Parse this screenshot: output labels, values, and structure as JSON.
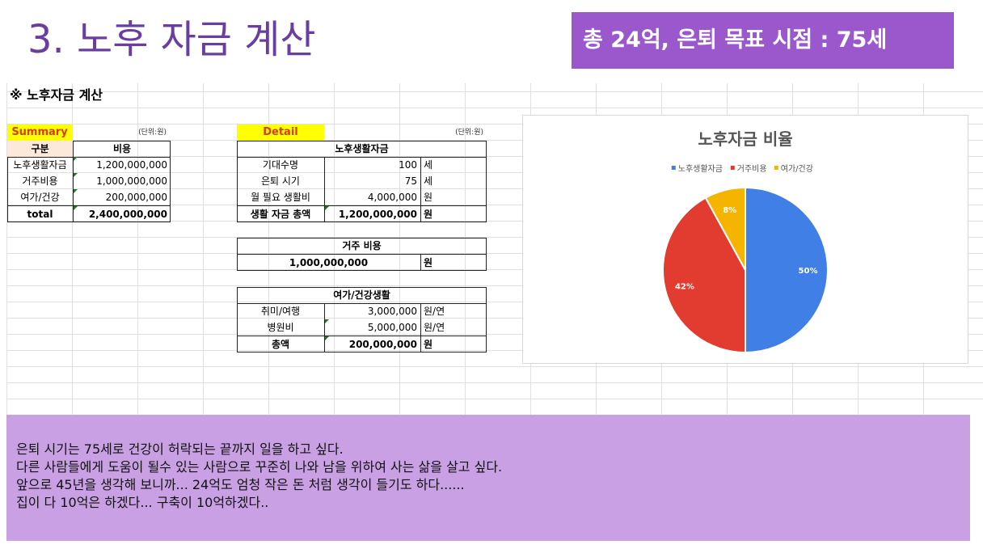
{
  "slide": {
    "title": "3. 노후 자금 계산",
    "banner": "총 24억, 은퇴 목표 시점  : 75세"
  },
  "sheet": {
    "heading": "※ 노후자금 계산",
    "summary": {
      "label": "Summary",
      "unit": "(단위:원)",
      "col_headers": [
        "구분",
        "비용"
      ],
      "rows": [
        {
          "name": "노후생활자금",
          "value": "1,200,000,000"
        },
        {
          "name": "거주비용",
          "value": "1,000,000,000"
        },
        {
          "name": "여가/건강",
          "value": "200,000,000"
        }
      ],
      "total_label": "total",
      "total_value": "2,400,000,000"
    },
    "detail": {
      "label": "Detail",
      "unit": "(단위:원)",
      "living": {
        "title": "노후생활자금",
        "rows": [
          {
            "name": "기대수명",
            "value": "100",
            "unit": "세"
          },
          {
            "name": "은퇴 시기",
            "value": "75",
            "unit": "세"
          },
          {
            "name": "월 필요 생활비",
            "value": "4,000,000",
            "unit": "원"
          }
        ],
        "total_name": "생활 자금 총액",
        "total_value": "1,200,000,000",
        "total_unit": "원"
      },
      "housing": {
        "title": "거주 비용",
        "value": "1,000,000,000",
        "unit": "원"
      },
      "leisure": {
        "title": "여가/건강생활",
        "rows": [
          {
            "name": "취미/여행",
            "value": "3,000,000",
            "unit": "원/연"
          },
          {
            "name": "병원비",
            "value": "5,000,000",
            "unit": "원/연"
          }
        ],
        "total_name": "총액",
        "total_value": "200,000,000",
        "total_unit": "원"
      }
    }
  },
  "chart_data": {
    "type": "pie",
    "title": "노후자금 비율",
    "legend_position": "top",
    "categories": [
      "노후생활자금",
      "거주비용",
      "여가/건강"
    ],
    "values": [
      50,
      42,
      8
    ],
    "labels": [
      "50%",
      "42%",
      "8%"
    ],
    "colors": [
      "#3f7fe6",
      "#e23b30",
      "#f4b400"
    ]
  },
  "note": {
    "lines": [
      "은퇴 시기는 75세로 건강이 허락되는 끝까지 일을 하고 싶다.",
      "다른 사람들에게 도움이 될수 있는 사람으로 꾸준히 나와 남을 위하여 사는 삶을 살고 싶다.",
      "앞으로 45년을 생각해 보니까... 24억도 엄청 작은 돈 처럼 생각이 들기도 하다......",
      "집이 다 10억은 하겠다... 구축이 10억하겠다.."
    ]
  }
}
